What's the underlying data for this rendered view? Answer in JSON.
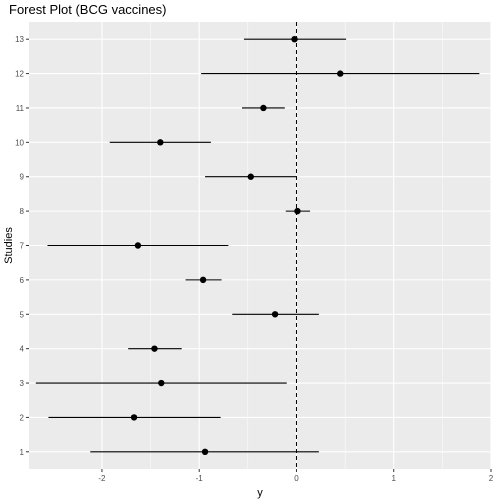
{
  "chart_data": {
    "type": "scatter",
    "title": "Forest Plot (BCG vaccines)",
    "xlabel": "y",
    "ylabel": "Studies",
    "xlim": [
      -2.75,
      2.0
    ],
    "ylim": [
      0.5,
      13.5
    ],
    "x_ticks": [
      -2,
      -1,
      0,
      1,
      2
    ],
    "y_ticks": [
      1,
      2,
      3,
      4,
      5,
      6,
      7,
      8,
      9,
      10,
      11,
      12,
      13
    ],
    "grid": true,
    "reference_line": 0,
    "colors": {
      "panel": "#ebebeb",
      "grid": "#ffffff",
      "point": "#000000",
      "line": "#000000"
    },
    "points": [
      {
        "study": 1,
        "estimate": -0.94,
        "lower": -2.12,
        "upper": 0.23
      },
      {
        "study": 2,
        "estimate": -1.67,
        "lower": -2.55,
        "upper": -0.78
      },
      {
        "study": 3,
        "estimate": -1.39,
        "lower": -2.68,
        "upper": -0.1
      },
      {
        "study": 4,
        "estimate": -1.46,
        "lower": -1.73,
        "upper": -1.18
      },
      {
        "study": 5,
        "estimate": -0.22,
        "lower": -0.66,
        "upper": 0.23
      },
      {
        "study": 6,
        "estimate": -0.96,
        "lower": -1.14,
        "upper": -0.77
      },
      {
        "study": 7,
        "estimate": -1.63,
        "lower": -2.56,
        "upper": -0.7
      },
      {
        "study": 8,
        "estimate": 0.01,
        "lower": -0.11,
        "upper": 0.14
      },
      {
        "study": 9,
        "estimate": -0.47,
        "lower": -0.94,
        "upper": 0.0
      },
      {
        "study": 10,
        "estimate": -1.4,
        "lower": -1.92,
        "upper": -0.88
      },
      {
        "study": 11,
        "estimate": -0.34,
        "lower": -0.56,
        "upper": -0.12
      },
      {
        "study": 12,
        "estimate": 0.45,
        "lower": -0.98,
        "upper": 1.88
      },
      {
        "study": 13,
        "estimate": -0.02,
        "lower": -0.54,
        "upper": 0.51
      }
    ]
  }
}
